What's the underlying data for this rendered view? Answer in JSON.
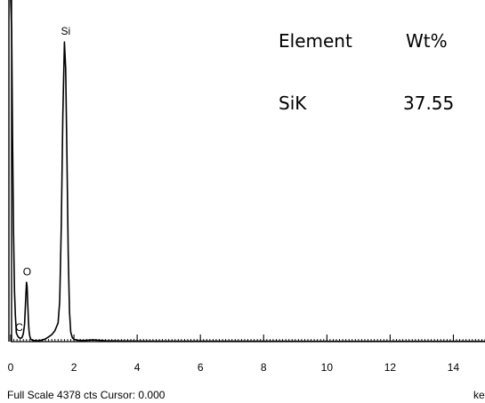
{
  "chart_data": {
    "type": "line",
    "xlabel": "",
    "ylabel": "",
    "xunit": "ke",
    "xlim": [
      0,
      15
    ],
    "ylim": [
      0,
      4378
    ],
    "xticks": [
      0,
      2,
      4,
      6,
      8,
      10,
      12,
      14
    ],
    "grid": false,
    "series": [
      {
        "x": [
          0,
          0.03,
          0.06,
          0.09,
          0.12,
          0.15,
          0.18,
          0.21,
          0.24,
          0.27,
          0.3,
          0.33,
          0.36,
          0.4,
          0.44,
          0.48,
          0.5,
          0.52,
          0.54,
          0.56,
          0.58,
          0.6,
          0.62,
          0.64,
          0.68,
          0.72,
          0.8,
          0.9,
          1.0,
          1.1,
          1.2,
          1.3,
          1.4,
          1.5,
          1.55,
          1.6,
          1.65,
          1.7,
          1.74,
          1.78,
          1.82,
          1.86,
          1.9,
          1.95,
          2.0,
          2.1,
          2.3,
          2.6,
          2.8,
          3.0,
          3.5,
          4.0,
          5.0,
          6.0,
          8.0,
          10.0,
          12.0,
          14.0,
          15.0
        ],
        "y": [
          4378,
          4000,
          2600,
          1400,
          640,
          330,
          110,
          80,
          60,
          50,
          45,
          45,
          55,
          100,
          220,
          600,
          760,
          700,
          480,
          280,
          140,
          80,
          50,
          30,
          20,
          15,
          12,
          12,
          20,
          35,
          60,
          90,
          140,
          240,
          520,
          1500,
          2900,
          3840,
          3500,
          2400,
          1100,
          380,
          120,
          50,
          30,
          18,
          14,
          22,
          16,
          10,
          8,
          7,
          6,
          5,
          4,
          3,
          3,
          3,
          3
        ]
      }
    ],
    "peaks": [
      {
        "label": "Si",
        "x": 1.74,
        "y": 3840
      },
      {
        "label": "O",
        "x": 0.52,
        "y": 760
      },
      {
        "label": "C",
        "x": 0.27,
        "y": 45
      }
    ],
    "title": ""
  },
  "table": {
    "header_element": "Element",
    "header_wt": "Wt%",
    "row_element": "SiK",
    "row_wt": "37.55"
  },
  "footer": {
    "scale_cursor": "Full Scale 4378 cts Cursor: 0.000"
  },
  "colors": {
    "spectrum": "#000000",
    "axis": "#000000",
    "background": "#ffffff"
  }
}
